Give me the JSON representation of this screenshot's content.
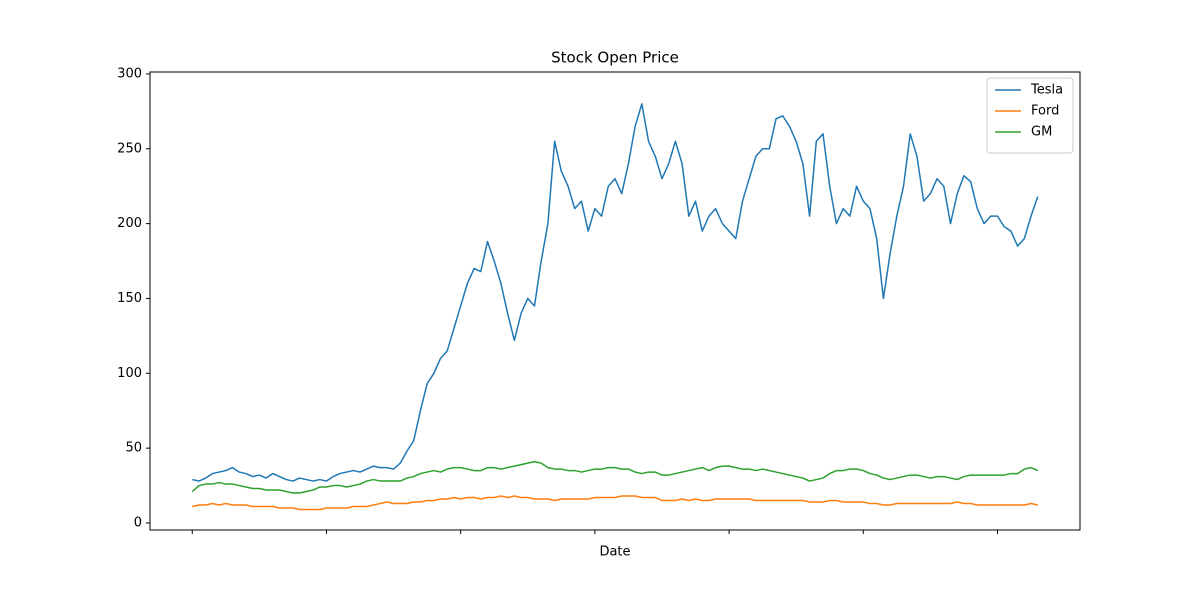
{
  "chart_data": {
    "type": "line",
    "title": "Stock Open Price",
    "x_label": "Date",
    "categories": [
      null,
      null,
      null,
      null,
      null,
      null,
      null,
      null,
      null,
      null,
      null,
      null,
      null,
      null,
      null,
      null,
      null,
      null,
      null,
      null,
      null,
      null,
      null,
      null,
      null,
      null,
      null,
      null,
      null,
      null,
      null,
      null,
      null,
      null,
      null,
      null,
      null,
      null,
      null,
      null,
      null,
      null,
      null,
      null,
      null,
      null,
      null,
      null,
      null,
      null,
      null,
      null,
      null,
      null,
      null,
      null,
      null,
      null,
      null,
      null,
      null,
      null,
      null,
      null,
      null,
      null,
      null,
      null,
      null,
      null,
      null,
      null,
      null,
      null,
      null,
      null,
      null,
      null,
      null,
      null,
      null,
      null,
      null,
      null,
      null,
      null,
      null,
      null,
      null,
      null,
      null,
      null,
      null,
      null,
      null,
      null,
      null,
      null,
      null,
      null,
      null,
      null,
      null,
      null,
      null,
      null,
      null,
      null,
      null,
      null,
      null,
      null,
      null,
      null,
      null,
      null,
      null,
      null,
      null,
      null,
      null,
      null,
      null,
      null,
      null,
      null,
      null
    ],
    "series": [
      {
        "name": "Tesla",
        "color": "#1f77b4",
        "values": [
          29,
          28,
          30,
          33,
          34,
          35,
          37,
          34,
          33,
          31,
          32,
          30,
          33,
          31,
          29,
          28,
          30,
          29,
          28,
          29,
          28,
          31,
          33,
          34,
          35,
          34,
          36,
          38,
          37,
          37,
          36,
          40,
          48,
          55,
          75,
          93,
          100,
          110,
          115,
          130,
          145,
          160,
          170,
          168,
          188,
          175,
          160,
          140,
          122,
          140,
          150,
          145,
          175,
          200,
          255,
          235,
          225,
          210,
          215,
          195,
          210,
          205,
          225,
          230,
          220,
          240,
          265,
          280,
          255,
          245,
          230,
          240,
          255,
          240,
          205,
          215,
          195,
          205,
          210,
          200,
          195,
          190,
          215,
          230,
          245,
          250,
          250,
          270,
          272,
          265,
          255,
          240,
          205,
          255,
          260,
          225,
          200,
          210,
          205,
          225,
          215,
          210,
          190,
          150,
          180,
          205,
          225,
          260,
          245,
          215,
          220,
          230,
          225,
          200,
          220,
          232,
          228,
          210,
          200,
          205,
          205,
          198,
          195,
          185,
          190,
          205,
          218
        ]
      },
      {
        "name": "Ford",
        "color": "#ff7f0e",
        "values": [
          11,
          12,
          12,
          13,
          12,
          13,
          12,
          12,
          12,
          11,
          11,
          11,
          11,
          10,
          10,
          10,
          9,
          9,
          9,
          9,
          10,
          10,
          10,
          10,
          11,
          11,
          11,
          12,
          13,
          14,
          13,
          13,
          13,
          14,
          14,
          15,
          15,
          16,
          16,
          17,
          16,
          17,
          17,
          16,
          17,
          17,
          18,
          17,
          18,
          17,
          17,
          16,
          16,
          16,
          15,
          16,
          16,
          16,
          16,
          16,
          17,
          17,
          17,
          17,
          18,
          18,
          18,
          17,
          17,
          17,
          15,
          15,
          15,
          16,
          15,
          16,
          15,
          15,
          16,
          16,
          16,
          16,
          16,
          16,
          15,
          15,
          15,
          15,
          15,
          15,
          15,
          15,
          14,
          14,
          14,
          15,
          15,
          14,
          14,
          14,
          14,
          13,
          13,
          12,
          12,
          13,
          13,
          13,
          13,
          13,
          13,
          13,
          13,
          13,
          14,
          13,
          13,
          12,
          12,
          12,
          12,
          12,
          12,
          12,
          12,
          13,
          12
        ]
      },
      {
        "name": "GM",
        "color": "#2ca02c",
        "values": [
          21,
          25,
          26,
          26,
          27,
          26,
          26,
          25,
          24,
          23,
          23,
          22,
          22,
          22,
          21,
          20,
          20,
          21,
          22,
          24,
          24,
          25,
          25,
          24,
          25,
          26,
          28,
          29,
          28,
          28,
          28,
          28,
          30,
          31,
          33,
          34,
          35,
          34,
          36,
          37,
          37,
          36,
          35,
          35,
          37,
          37,
          36,
          37,
          38,
          39,
          40,
          41,
          40,
          37,
          36,
          36,
          35,
          35,
          34,
          35,
          36,
          36,
          37,
          37,
          36,
          36,
          34,
          33,
          34,
          34,
          32,
          32,
          33,
          34,
          35,
          36,
          37,
          35,
          37,
          38,
          38,
          37,
          36,
          36,
          35,
          36,
          35,
          34,
          33,
          32,
          31,
          30,
          28,
          29,
          30,
          33,
          35,
          35,
          36,
          36,
          35,
          33,
          32,
          30,
          29,
          30,
          31,
          32,
          32,
          31,
          30,
          31,
          31,
          30,
          29,
          31,
          32,
          32,
          32,
          32,
          32,
          32,
          33,
          33,
          36,
          37,
          35
        ]
      }
    ],
    "xlim": [
      -6.3,
      132.3
    ],
    "xticks": [
      0,
      20,
      40,
      60,
      80,
      100,
      120
    ],
    "ylim": [
      -4.7,
      301.3
    ],
    "yticks": [
      0,
      50,
      100,
      150,
      200,
      250,
      300
    ],
    "legend": "upper right"
  }
}
